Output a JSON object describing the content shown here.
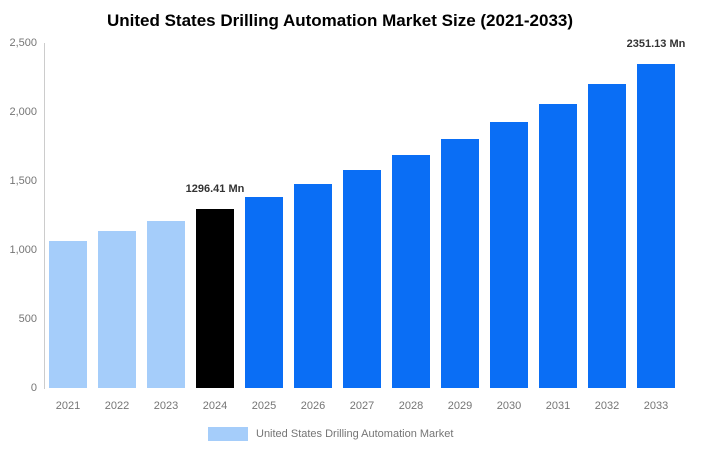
{
  "chart_data": {
    "type": "bar",
    "title": "United States Drilling Automation Market Size (2021-2033)",
    "categories": [
      "2021",
      "2022",
      "2023",
      "2024",
      "2025",
      "2026",
      "2027",
      "2028",
      "2029",
      "2030",
      "2031",
      "2032",
      "2033"
    ],
    "values": [
      1063,
      1136,
      1213,
      1296.41,
      1385,
      1480,
      1581,
      1689,
      1805,
      1928,
      2060,
      2201,
      2351.13
    ],
    "bar_colors": [
      "#a5cdfa",
      "#a5cdfa",
      "#a5cdfa",
      "#000000",
      "#0a6ef5",
      "#0a6ef5",
      "#0a6ef5",
      "#0a6ef5",
      "#0a6ef5",
      "#0a6ef5",
      "#0a6ef5",
      "#0a6ef5",
      "#0a6ef5"
    ],
    "xlabel": "",
    "ylabel": "",
    "ylim": [
      0,
      2500
    ],
    "ytick_values": [
      0,
      500,
      1000,
      1500,
      2000,
      2500
    ],
    "ytick_labels": [
      "0",
      "500",
      "1,000",
      "1,500",
      "2,000",
      "2,500"
    ],
    "grid": false,
    "legend_position": "bottom",
    "annotations": [
      {
        "category": "2024",
        "text": "1296.41 Mn"
      },
      {
        "category": "2033",
        "text": "2351.13 Mn"
      }
    ],
    "legend": {
      "label": "United States Drilling Automation Market",
      "swatch_color": "#a5cdfa"
    }
  },
  "colors": {
    "historical_bar": "#a5cdfa",
    "highlight_bar": "#000000",
    "forecast_bar": "#0a6ef5",
    "axis_line": "#cccccc",
    "tick_text": "#757575",
    "legend_text": "#757575",
    "annotation_text": "#333333",
    "title_text": "#000000"
  }
}
